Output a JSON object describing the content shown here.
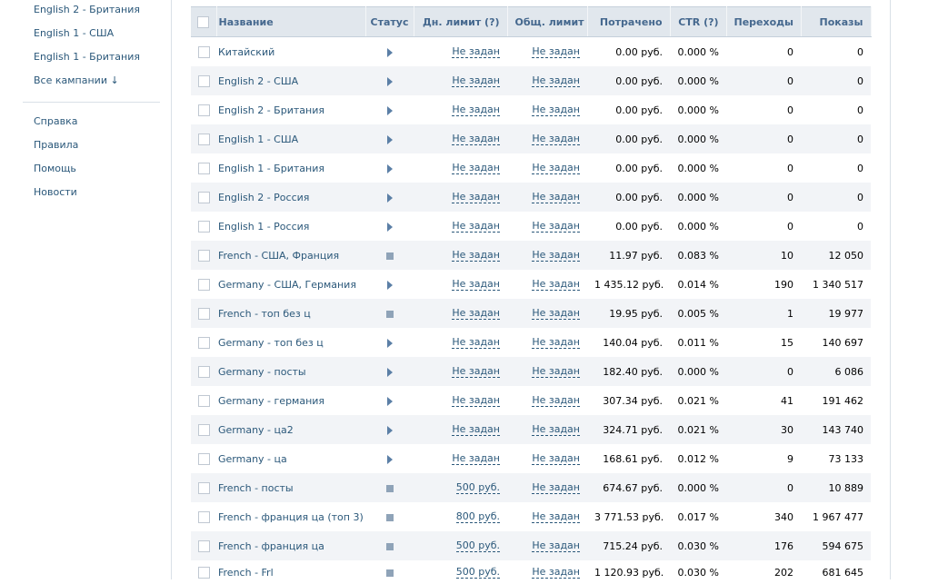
{
  "sidebar": {
    "campaigns": [
      {
        "label": "English 2 - Британия"
      },
      {
        "label": "English 1 - США"
      },
      {
        "label": "English 1 - Британия"
      },
      {
        "label": "Все кампании ↓"
      }
    ],
    "links": [
      {
        "label": "Справка"
      },
      {
        "label": "Правила"
      },
      {
        "label": "Помощь"
      },
      {
        "label": "Новости"
      }
    ]
  },
  "table": {
    "headers": {
      "name": "Название",
      "status": "Статус",
      "daily_limit": "Дн. лимит (?)",
      "total_limit": "Общ. лимит",
      "spent": "Потрачено",
      "ctr": "CTR (?)",
      "clicks": "Переходы",
      "impressions": "Показы"
    },
    "rows": [
      {
        "name": "Китайский",
        "status": "play-icon",
        "daily_limit": "Не задан",
        "total_limit": "Не задан",
        "spent": "0.00 руб.",
        "ctr": "0.000 %",
        "clicks": "0",
        "impressions": "0"
      },
      {
        "name": "English 2 - США",
        "status": "play-icon",
        "daily_limit": "Не задан",
        "total_limit": "Не задан",
        "spent": "0.00 руб.",
        "ctr": "0.000 %",
        "clicks": "0",
        "impressions": "0"
      },
      {
        "name": "English 2 - Британия",
        "status": "play-icon",
        "daily_limit": "Не задан",
        "total_limit": "Не задан",
        "spent": "0.00 руб.",
        "ctr": "0.000 %",
        "clicks": "0",
        "impressions": "0"
      },
      {
        "name": "English 1 - США",
        "status": "play-icon",
        "daily_limit": "Не задан",
        "total_limit": "Не задан",
        "spent": "0.00 руб.",
        "ctr": "0.000 %",
        "clicks": "0",
        "impressions": "0"
      },
      {
        "name": "English 1 - Британия",
        "status": "play-icon",
        "daily_limit": "Не задан",
        "total_limit": "Не задан",
        "spent": "0.00 руб.",
        "ctr": "0.000 %",
        "clicks": "0",
        "impressions": "0"
      },
      {
        "name": "English 2 - Россия",
        "status": "play-icon",
        "daily_limit": "Не задан",
        "total_limit": "Не задан",
        "spent": "0.00 руб.",
        "ctr": "0.000 %",
        "clicks": "0",
        "impressions": "0"
      },
      {
        "name": "English 1 - Россия",
        "status": "play-icon",
        "daily_limit": "Не задан",
        "total_limit": "Не задан",
        "spent": "0.00 руб.",
        "ctr": "0.000 %",
        "clicks": "0",
        "impressions": "0"
      },
      {
        "name": "French - США, Франция",
        "status": "stop-icon",
        "daily_limit": "Не задан",
        "total_limit": "Не задан",
        "spent": "11.97 руб.",
        "ctr": "0.083 %",
        "clicks": "10",
        "impressions": "12 050"
      },
      {
        "name": "Germany - США, Германия",
        "status": "play-icon",
        "daily_limit": "Не задан",
        "total_limit": "Не задан",
        "spent": "1 435.12 руб.",
        "ctr": "0.014 %",
        "clicks": "190",
        "impressions": "1 340 517"
      },
      {
        "name": "French - топ без ц",
        "status": "stop-icon",
        "daily_limit": "Не задан",
        "total_limit": "Не задан",
        "spent": "19.95 руб.",
        "ctr": "0.005 %",
        "clicks": "1",
        "impressions": "19 977"
      },
      {
        "name": "Germany - топ без ц",
        "status": "play-icon",
        "daily_limit": "Не задан",
        "total_limit": "Не задан",
        "spent": "140.04 руб.",
        "ctr": "0.011 %",
        "clicks": "15",
        "impressions": "140 697"
      },
      {
        "name": "Germany - посты",
        "status": "play-icon",
        "daily_limit": "Не задан",
        "total_limit": "Не задан",
        "spent": "182.40 руб.",
        "ctr": "0.000 %",
        "clicks": "0",
        "impressions": "6 086"
      },
      {
        "name": "Germany - германия",
        "status": "play-icon",
        "daily_limit": "Не задан",
        "total_limit": "Не задан",
        "spent": "307.34 руб.",
        "ctr": "0.021 %",
        "clicks": "41",
        "impressions": "191 462"
      },
      {
        "name": "Germany - ца2",
        "status": "play-icon",
        "daily_limit": "Не задан",
        "total_limit": "Не задан",
        "spent": "324.71 руб.",
        "ctr": "0.021 %",
        "clicks": "30",
        "impressions": "143 740"
      },
      {
        "name": "Germany - ца",
        "status": "play-icon",
        "daily_limit": "Не задан",
        "total_limit": "Не задан",
        "spent": "168.61 руб.",
        "ctr": "0.012 %",
        "clicks": "9",
        "impressions": "73 133"
      },
      {
        "name": "French - посты",
        "status": "stop-icon",
        "daily_limit": "500 руб.",
        "total_limit": "Не задан",
        "spent": "674.67 руб.",
        "ctr": "0.000 %",
        "clicks": "0",
        "impressions": "10 889"
      },
      {
        "name": "French - франция ца (топ 3)",
        "status": "stop-icon",
        "daily_limit": "800 руб.",
        "total_limit": "Не задан",
        "spent": "3 771.53 руб.",
        "ctr": "0.017 %",
        "clicks": "340",
        "impressions": "1 967 477"
      },
      {
        "name": "French - франция ца",
        "status": "stop-icon",
        "daily_limit": "500 руб.",
        "total_limit": "Не задан",
        "spent": "715.24 руб.",
        "ctr": "0.030 %",
        "clicks": "176",
        "impressions": "594 675"
      },
      {
        "name": "French - Frl",
        "status": "stop-icon",
        "daily_limit": "500 руб.",
        "total_limit": "Не задан",
        "spent": "1 120.93 руб.",
        "ctr": "0.030 %",
        "clicks": "202",
        "impressions": "681 645"
      }
    ]
  }
}
